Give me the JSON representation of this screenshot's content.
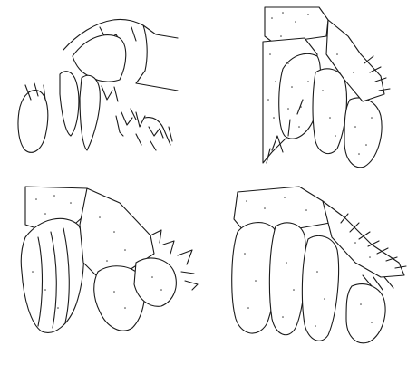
{
  "plate": {
    "figure_labels": [],
    "caption": ""
  },
  "panels": [
    {
      "id": "top-left",
      "subject": "pleopod-outline-sketch",
      "stippled": false
    },
    {
      "id": "top-right",
      "subject": "abdominal-segments-with-pleopods",
      "stippled": true
    },
    {
      "id": "bottom-left",
      "subject": "abdomen-with-egg-mass-and-telson",
      "stippled": true
    },
    {
      "id": "bottom-right",
      "subject": "abdominal-segments-with-spinose-margin",
      "stippled": true
    }
  ],
  "colors": {
    "ink": "#1a1a1a",
    "paper": "#ffffff",
    "stipple": "#3a3a3a"
  }
}
